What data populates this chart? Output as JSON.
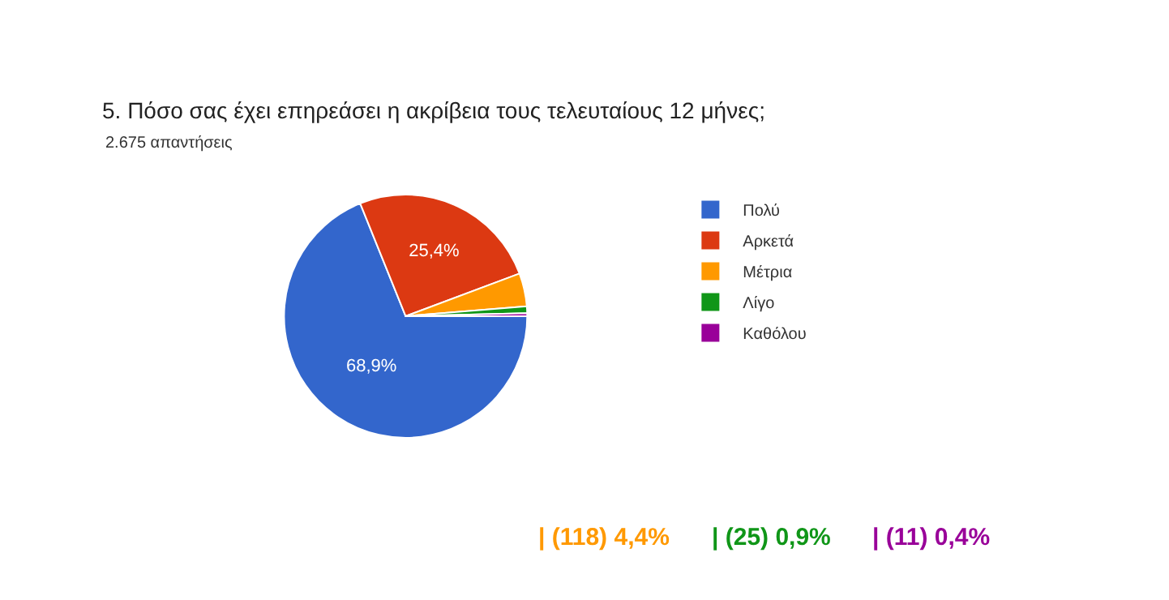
{
  "chart_data": {
    "type": "pie",
    "title": "5. Πόσο σας έχει επηρεάσει η ακρίβεια τους τελευταίους 12 μήνες;",
    "subtitle": "2.675 απαντήσεις",
    "categories": [
      "Πολύ",
      "Αρκετά",
      "Μέτρια",
      "Λίγο",
      "Καθόλου"
    ],
    "values": [
      68.9,
      25.4,
      4.4,
      0.9,
      0.4
    ],
    "colors": [
      "#3366cc",
      "#dc3912",
      "#ff9900",
      "#109618",
      "#990099"
    ],
    "value_labels": [
      "68,9%",
      "25,4%",
      null,
      null,
      null
    ],
    "annotations": [
      "| (118) 4,4%",
      "| (25) 0,9%",
      "| (11) 0,4%"
    ],
    "legend": "right"
  }
}
